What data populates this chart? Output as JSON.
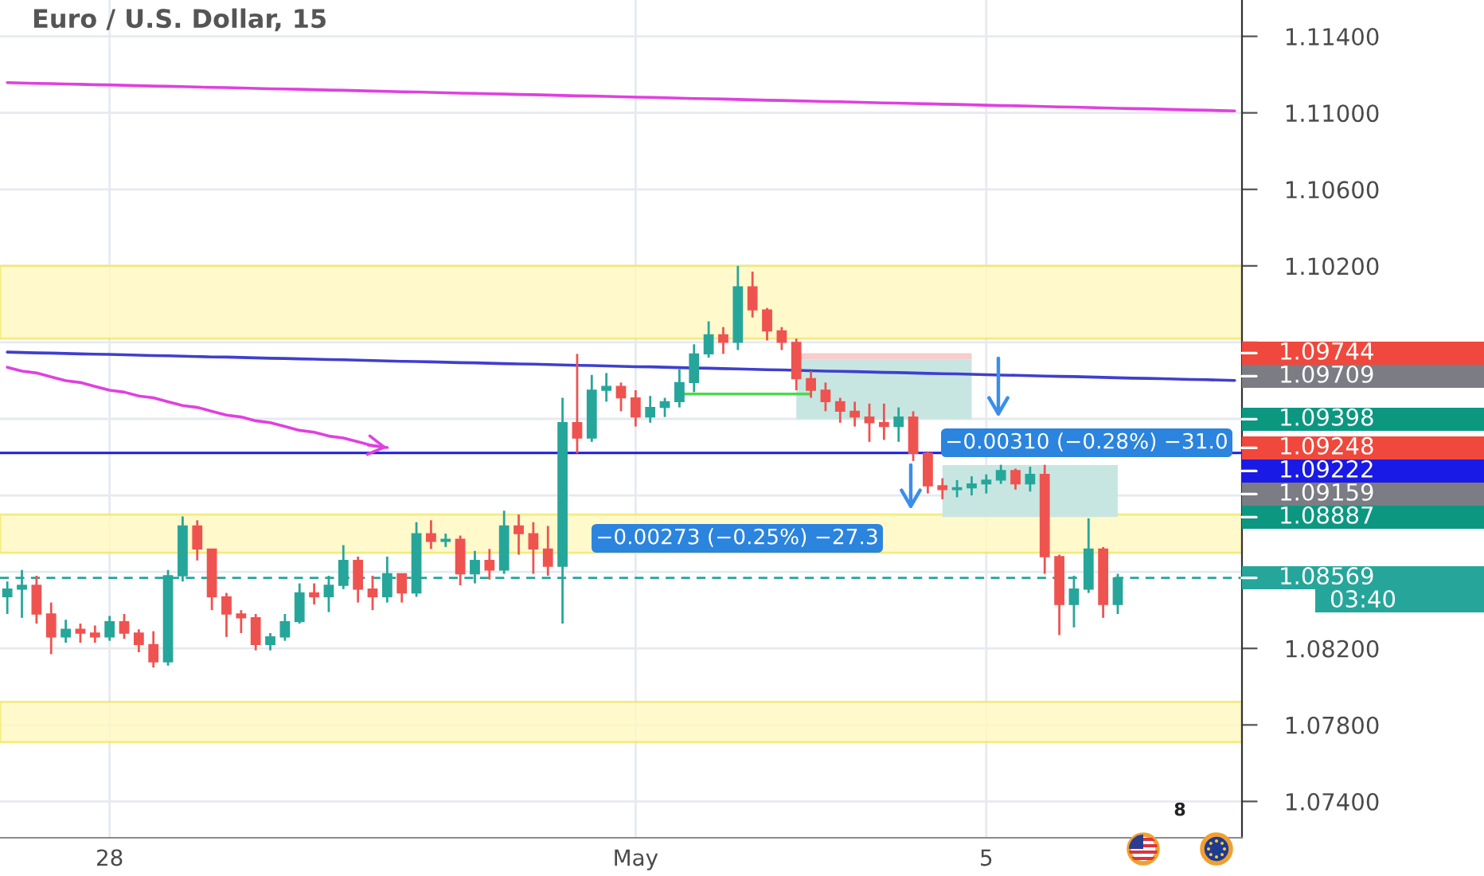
{
  "chart_data": {
    "type": "candlestick",
    "title": "Euro / U.S. Dollar, 15",
    "categories": [
      null,
      null,
      null,
      null,
      null,
      null,
      null,
      "28",
      null,
      null,
      null,
      null,
      null,
      null,
      null,
      null,
      null,
      null,
      null,
      null,
      null,
      null,
      null,
      null,
      null,
      null,
      null,
      null,
      null,
      null,
      null,
      null,
      null,
      null,
      null,
      null,
      null,
      null,
      null,
      null,
      null,
      null,
      null,
      "May",
      null,
      null,
      null,
      null,
      null,
      null,
      null,
      null,
      null,
      null,
      null,
      null,
      null,
      null,
      null,
      null,
      null,
      null,
      null,
      null,
      null,
      null,
      null,
      "5",
      null,
      null,
      null,
      null,
      null,
      null,
      null,
      null,
      null,
      null,
      null,
      null,
      null,
      null,
      null,
      null,
      null
    ],
    "ohlc": [
      [
        1.0847,
        1.0855,
        1.0838,
        1.0851
      ],
      [
        1.0851,
        1.0861,
        1.0836,
        1.0853
      ],
      [
        1.0853,
        1.0858,
        1.0833,
        1.0838
      ],
      [
        1.0838,
        1.0844,
        1.0817,
        1.0826
      ],
      [
        1.0826,
        1.0835,
        1.0823,
        1.083
      ],
      [
        1.083,
        1.0833,
        1.0823,
        1.0828
      ],
      [
        1.0828,
        1.0832,
        1.0823,
        1.0826
      ],
      [
        1.0826,
        1.0837,
        1.0824,
        1.0834
      ],
      [
        1.0834,
        1.0838,
        1.0825,
        1.0828
      ],
      [
        1.0828,
        1.083,
        1.0818,
        1.0822
      ],
      [
        1.0822,
        1.0829,
        1.081,
        1.0813
      ],
      [
        1.0813,
        1.0861,
        1.0811,
        1.0858
      ],
      [
        1.0858,
        1.0889,
        1.0855,
        1.0884
      ],
      [
        1.0884,
        1.0887,
        1.0866,
        1.0872
      ],
      [
        1.0872,
        1.0872,
        1.084,
        1.0847
      ],
      [
        1.0847,
        1.0849,
        1.0826,
        1.0838
      ],
      [
        1.0838,
        1.084,
        1.0828,
        1.0836
      ],
      [
        1.0836,
        1.0838,
        1.0819,
        1.0822
      ],
      [
        1.0822,
        1.0828,
        1.0819,
        1.0826
      ],
      [
        1.0826,
        1.0838,
        1.0824,
        1.0834
      ],
      [
        1.0834,
        1.0854,
        1.0833,
        1.0849
      ],
      [
        1.0849,
        1.0854,
        1.0843,
        1.0847
      ],
      [
        1.0847,
        1.0858,
        1.0839,
        1.0853
      ],
      [
        1.0853,
        1.0874,
        1.0851,
        1.0866
      ],
      [
        1.0866,
        1.0868,
        1.0844,
        1.0851
      ],
      [
        1.0851,
        1.0858,
        1.084,
        1.0847
      ],
      [
        1.0847,
        1.0868,
        1.0844,
        1.0859
      ],
      [
        1.0859,
        1.0859,
        1.0844,
        1.0849
      ],
      [
        1.0849,
        1.0886,
        1.0847,
        1.088
      ],
      [
        1.088,
        1.0887,
        1.0872,
        1.0876
      ],
      [
        1.0876,
        1.088,
        1.0873,
        1.0877
      ],
      [
        1.0877,
        1.0879,
        1.0853,
        1.0859
      ],
      [
        1.0859,
        1.0871,
        1.0854,
        1.0866
      ],
      [
        1.0866,
        1.0872,
        1.0856,
        1.0861
      ],
      [
        1.0861,
        1.0892,
        1.0859,
        1.0884
      ],
      [
        1.0884,
        1.089,
        1.0869,
        1.088
      ],
      [
        1.088,
        1.0886,
        1.0859,
        1.0872
      ],
      [
        1.0872,
        1.0884,
        1.0858,
        1.0863
      ],
      [
        1.0863,
        1.0951,
        1.0833,
        1.0938
      ],
      [
        1.0938,
        1.0974,
        1.0922,
        1.093
      ],
      [
        1.093,
        1.0963,
        1.0928,
        1.0955
      ],
      [
        1.0955,
        1.0964,
        1.0949,
        1.0957
      ],
      [
        1.0957,
        1.0959,
        1.0944,
        1.0951
      ],
      [
        1.0951,
        1.0955,
        1.0936,
        1.0941
      ],
      [
        1.0941,
        1.0952,
        1.0938,
        1.0946
      ],
      [
        1.0946,
        1.0951,
        1.0941,
        1.0949
      ],
      [
        1.0949,
        1.0966,
        1.0946,
        1.0959
      ],
      [
        1.0959,
        1.0979,
        1.0954,
        1.0974
      ],
      [
        1.0974,
        1.0991,
        1.0972,
        1.0984
      ],
      [
        1.0984,
        1.0988,
        1.0974,
        1.098
      ],
      [
        1.098,
        1.102,
        1.0976,
        1.1009
      ],
      [
        1.1009,
        1.1017,
        1.0993,
        1.0997
      ],
      [
        1.0997,
        1.0998,
        1.0981,
        1.0986
      ],
      [
        1.0986,
        1.0988,
        1.0976,
        1.098
      ],
      [
        1.098,
        1.0982,
        1.0955,
        1.0961
      ],
      [
        1.0961,
        1.0965,
        1.0951,
        1.0955
      ],
      [
        1.0955,
        1.0959,
        1.0944,
        1.0949
      ],
      [
        1.0949,
        1.0951,
        1.0938,
        1.0944
      ],
      [
        1.0944,
        1.0949,
        1.0936,
        1.0941
      ],
      [
        1.0941,
        1.0948,
        1.0928,
        1.0938
      ],
      [
        1.0938,
        1.0948,
        1.0929,
        1.0936
      ],
      [
        1.0936,
        1.0946,
        1.0928,
        1.0941
      ],
      [
        1.0941,
        1.0944,
        1.0918,
        1.0922
      ],
      [
        1.0922,
        1.0923,
        1.0901,
        1.0905
      ],
      [
        1.0905,
        1.0909,
        1.0898,
        1.0903
      ],
      [
        1.0903,
        1.0908,
        1.0899,
        1.0904
      ],
      [
        1.0904,
        1.091,
        1.09,
        1.0906
      ],
      [
        1.0906,
        1.0911,
        1.0901,
        1.0908
      ],
      [
        1.0908,
        1.0916,
        1.0906,
        1.0913
      ],
      [
        1.0913,
        1.0914,
        1.0903,
        1.0906
      ],
      [
        1.0906,
        1.0915,
        1.0902,
        1.0911
      ],
      [
        1.0911,
        1.0916,
        1.0859,
        1.0868
      ],
      [
        1.0868,
        1.0869,
        1.0827,
        1.0843
      ],
      [
        1.0843,
        1.0858,
        1.0831,
        1.0851
      ],
      [
        1.0851,
        1.0888,
        1.0849,
        1.0872
      ],
      [
        1.0872,
        1.0873,
        1.0836,
        1.0843
      ],
      [
        1.0843,
        1.0859,
        1.0838,
        1.08569
      ],
      null,
      null,
      null,
      null,
      null,
      null,
      null,
      null
    ],
    "colors": [
      "#26a69a",
      "#26a69a",
      "#ef5350",
      "#ef5350",
      "#26a69a",
      "#ef5350",
      "#ef5350",
      "#26a69a",
      "#ef5350",
      "#ef5350",
      "#ef5350",
      "#26a69a",
      "#26a69a",
      "#ef5350",
      "#ef5350",
      "#ef5350",
      "#ef5350",
      "#ef5350",
      "#26a69a",
      "#26a69a",
      "#26a69a",
      "#ef5350",
      "#26a69a",
      "#26a69a",
      "#ef5350",
      "#ef5350",
      "#26a69a",
      "#ef5350",
      "#26a69a",
      "#ef5350",
      "#26a69a",
      "#ef5350",
      "#26a69a",
      "#ef5350",
      "#26a69a",
      "#ef5350",
      "#ef5350",
      "#ef5350",
      "#26a69a",
      "#ef5350",
      "#26a69a",
      "#26a69a",
      "#ef5350",
      "#ef5350",
      "#26a69a",
      "#26a69a",
      "#26a69a",
      "#26a69a",
      "#26a69a",
      "#ef5350",
      "#26a69a",
      "#ef5350",
      "#ef5350",
      "#ef5350",
      "#ef5350",
      "#ef5350",
      "#ef5350",
      "#ef5350",
      "#ef5350",
      "#ef5350",
      "#ef5350",
      "#26a69a",
      "#ef5350",
      "#ef5350",
      "#ef5350",
      "#26a69a",
      "#26a69a",
      "#26a69a",
      "#26a69a",
      "#ef5350",
      "#26a69a",
      "#ef5350",
      "#ef5350",
      "#26a69a",
      "#26a69a",
      "#ef5350",
      "#26a69a",
      null,
      null,
      null,
      null,
      null,
      null,
      null,
      null
    ],
    "series": [
      {
        "type": "line",
        "color": "#e040e0",
        "values": [
          1.11158,
          1.11156,
          1.11154,
          1.11153,
          1.11151,
          1.11149,
          1.11147,
          1.11146,
          1.11144,
          1.11142,
          1.1114,
          1.11139,
          1.11137,
          1.11135,
          1.11133,
          1.11132,
          1.1113,
          1.11128,
          1.11126,
          1.11125,
          1.11123,
          1.11121,
          1.11119,
          1.11118,
          1.11116,
          1.11114,
          1.11112,
          1.1111,
          1.11109,
          1.11107,
          1.11105,
          1.11103,
          1.11102,
          1.111,
          1.11098,
          1.11096,
          1.11095,
          1.11093,
          1.11091,
          1.11089,
          1.11088,
          1.11086,
          1.11084,
          1.11082,
          1.11081,
          1.11079,
          1.11077,
          1.11075,
          1.11074,
          1.11072,
          1.1107,
          1.11068,
          1.11066,
          1.11065,
          1.11063,
          1.11061,
          1.11059,
          1.11058,
          1.11056,
          1.11054,
          1.11052,
          1.11051,
          1.11049,
          1.11047,
          1.11045,
          1.11044,
          1.11042,
          1.1104,
          1.11038,
          1.11037,
          1.11035,
          1.11033,
          1.11031,
          1.1103,
          1.11028,
          1.11026,
          1.11024,
          1.11022,
          1.11021,
          1.11019,
          1.11017,
          1.11015,
          1.11014,
          1.11012,
          1.1101
        ]
      },
      {
        "type": "line",
        "color": "#3f3fcf",
        "values": [
          1.09749,
          1.09747,
          1.09745,
          1.09744,
          1.09742,
          1.0974,
          1.09738,
          1.09737,
          1.09735,
          1.09733,
          1.09731,
          1.0973,
          1.09728,
          1.09726,
          1.09724,
          1.09723,
          1.09721,
          1.09719,
          1.09717,
          1.09716,
          1.09714,
          1.09712,
          1.0971,
          1.09709,
          1.09707,
          1.09705,
          1.09703,
          1.09701,
          1.097,
          1.09698,
          1.09696,
          1.09694,
          1.09693,
          1.09691,
          1.09689,
          1.09687,
          1.09686,
          1.09684,
          1.09682,
          1.0968,
          1.09679,
          1.09677,
          1.09675,
          1.09673,
          1.09672,
          1.0967,
          1.09668,
          1.09666,
          1.09665,
          1.09663,
          1.09661,
          1.09659,
          1.09657,
          1.09656,
          1.09654,
          1.09652,
          1.0965,
          1.09649,
          1.09647,
          1.09645,
          1.09643,
          1.09642,
          1.0964,
          1.09638,
          1.09636,
          1.09635,
          1.09633,
          1.09631,
          1.09629,
          1.09628,
          1.09626,
          1.09624,
          1.09622,
          1.09621,
          1.09619,
          1.09617,
          1.09615,
          1.09613,
          1.09612,
          1.0961,
          1.09608,
          1.09606,
          1.09605,
          1.09603,
          1.09601
        ]
      },
      {
        "type": "line",
        "color": "#4cd94c",
        "values": [
          null,
          null,
          null,
          null,
          null,
          null,
          null,
          null,
          null,
          null,
          null,
          null,
          null,
          null,
          null,
          null,
          null,
          null,
          null,
          null,
          null,
          null,
          null,
          null,
          null,
          null,
          null,
          null,
          null,
          null,
          null,
          null,
          null,
          null,
          null,
          null,
          null,
          null,
          null,
          null,
          null,
          null,
          null,
          null,
          null,
          null,
          1.0953,
          1.0953,
          1.0953,
          1.0953,
          1.0953,
          1.0953,
          1.0953,
          1.0953,
          1.0953,
          1.0953,
          null,
          null,
          null,
          null,
          null,
          null,
          null,
          null,
          null,
          null,
          null,
          null,
          null,
          null,
          null,
          null,
          null,
          null,
          null,
          null,
          null,
          null,
          null,
          null,
          null,
          null,
          null,
          null,
          null
        ]
      },
      {
        "type": "line",
        "color": "#e040e0",
        "values": [
          1.0967,
          1.0965,
          1.0964,
          1.0962,
          1.096,
          1.0959,
          1.0957,
          1.0955,
          1.0954,
          1.0952,
          1.0951,
          1.0949,
          1.0947,
          1.0946,
          1.0944,
          1.0942,
          1.0941,
          1.0939,
          1.0938,
          1.0936,
          1.0934,
          1.0933,
          1.0931,
          1.093,
          1.0928,
          1.0926,
          1.0925,
          null,
          null,
          null,
          null,
          null,
          null,
          null,
          null,
          null,
          null,
          null,
          null,
          null,
          null,
          null,
          null,
          null,
          null,
          null,
          null,
          null,
          null,
          null,
          null,
          null,
          null,
          null,
          null,
          null,
          null,
          null,
          null,
          null,
          null,
          null,
          null,
          null,
          null,
          null,
          null,
          null,
          null,
          null,
          null,
          null,
          null,
          null,
          null,
          null,
          null,
          null,
          null,
          null,
          null,
          null,
          null,
          null,
          null
        ]
      },
      {
        "type": "line",
        "color": "#f8cccc",
        "values": [
          null,
          null,
          null,
          null,
          null,
          null,
          null,
          null,
          null,
          null,
          null,
          null,
          null,
          null,
          null,
          null,
          null,
          null,
          null,
          null,
          null,
          null,
          null,
          null,
          null,
          null,
          null,
          null,
          null,
          null,
          null,
          null,
          null,
          null,
          null,
          null,
          null,
          null,
          null,
          null,
          null,
          null,
          null,
          null,
          null,
          null,
          null,
          null,
          null,
          null,
          null,
          null,
          null,
          null,
          null,
          null,
          null,
          null,
          null,
          null,
          null,
          null,
          null,
          null,
          null,
          null,
          null,
          null,
          null,
          null,
          null,
          null,
          null,
          null,
          null,
          null,
          null,
          null,
          null,
          null,
          null,
          null,
          null,
          null,
          null
        ],
        "lower": [
          null,
          null,
          null,
          null,
          null,
          null,
          null,
          null,
          null,
          null,
          null,
          null,
          null,
          null,
          null,
          null,
          null,
          null,
          null,
          null,
          null,
          null,
          null,
          null,
          null,
          null,
          null,
          null,
          null,
          null,
          null,
          null,
          null,
          null,
          null,
          null,
          null,
          null,
          null,
          null,
          null,
          null,
          null,
          null,
          null,
          null,
          null,
          null,
          null,
          null,
          null,
          null,
          null,
          null,
          1.09709,
          1.09709,
          1.09709,
          1.09709,
          1.09709,
          1.09709,
          1.09709,
          1.09709,
          1.09709,
          1.09709,
          1.09709,
          1.09709,
          1.09709,
          null,
          null,
          null,
          null,
          null,
          null,
          null,
          null,
          null,
          null,
          null,
          null,
          null,
          null,
          null,
          null,
          null,
          null
        ],
        "upper": [
          null,
          null,
          null,
          null,
          null,
          null,
          null,
          null,
          null,
          null,
          null,
          null,
          null,
          null,
          null,
          null,
          null,
          null,
          null,
          null,
          null,
          null,
          null,
          null,
          null,
          null,
          null,
          null,
          null,
          null,
          null,
          null,
          null,
          null,
          null,
          null,
          null,
          null,
          null,
          null,
          null,
          null,
          null,
          null,
          null,
          null,
          null,
          null,
          null,
          null,
          null,
          null,
          null,
          null,
          1.09744,
          1.09744,
          1.09744,
          1.09744,
          1.09744,
          1.09744,
          1.09744,
          1.09744,
          1.09744,
          1.09744,
          1.09744,
          1.09744,
          1.09744,
          null,
          null,
          null,
          null,
          null,
          null,
          null,
          null,
          null,
          null,
          null,
          null,
          null,
          null,
          null,
          null,
          null,
          null
        ]
      },
      {
        "type": "line",
        "color": "#c8e6e1",
        "values": [
          null,
          null,
          null,
          null,
          null,
          null,
          null,
          null,
          null,
          null,
          null,
          null,
          null,
          null,
          null,
          null,
          null,
          null,
          null,
          null,
          null,
          null,
          null,
          null,
          null,
          null,
          null,
          null,
          null,
          null,
          null,
          null,
          null,
          null,
          null,
          null,
          null,
          null,
          null,
          null,
          null,
          null,
          null,
          null,
          null,
          null,
          null,
          null,
          null,
          null,
          null,
          null,
          null,
          null,
          null,
          null,
          null,
          null,
          null,
          null,
          null,
          null,
          null,
          null,
          null,
          null,
          null,
          null,
          null,
          null,
          null,
          null,
          null,
          null,
          null,
          null,
          null,
          null,
          null,
          null,
          null,
          null,
          null,
          null,
          null
        ],
        "lower": [
          null,
          null,
          null,
          null,
          null,
          null,
          null,
          null,
          null,
          null,
          null,
          null,
          null,
          null,
          null,
          null,
          null,
          null,
          null,
          null,
          null,
          null,
          null,
          null,
          null,
          null,
          null,
          null,
          null,
          null,
          null,
          null,
          null,
          null,
          null,
          null,
          null,
          null,
          null,
          null,
          null,
          null,
          null,
          null,
          null,
          null,
          null,
          null,
          null,
          null,
          null,
          null,
          null,
          null,
          1.09398,
          1.09398,
          1.09398,
          1.09398,
          1.09398,
          1.09398,
          1.09398,
          1.09398,
          1.09398,
          1.09398,
          1.09398,
          1.09398,
          1.09398,
          null,
          null,
          null,
          null,
          null,
          null,
          null,
          null,
          null,
          null,
          null,
          null,
          null,
          null,
          null,
          null,
          null,
          null
        ],
        "upper": [
          null,
          null,
          null,
          null,
          null,
          null,
          null,
          null,
          null,
          null,
          null,
          null,
          null,
          null,
          null,
          null,
          null,
          null,
          null,
          null,
          null,
          null,
          null,
          null,
          null,
          null,
          null,
          null,
          null,
          null,
          null,
          null,
          null,
          null,
          null,
          null,
          null,
          null,
          null,
          null,
          null,
          null,
          null,
          null,
          null,
          null,
          null,
          null,
          null,
          null,
          null,
          null,
          null,
          null,
          1.09709,
          1.09709,
          1.09709,
          1.09709,
          1.09709,
          1.09709,
          1.09709,
          1.09709,
          1.09709,
          1.09709,
          1.09709,
          1.09709,
          1.09709,
          null,
          null,
          null,
          null,
          null,
          null,
          null,
          null,
          null,
          null,
          null,
          null,
          null,
          null,
          null,
          null,
          null,
          null
        ]
      },
      {
        "type": "line",
        "color": "#c8e6e1",
        "values": [
          null,
          null,
          null,
          null,
          null,
          null,
          null,
          null,
          null,
          null,
          null,
          null,
          null,
          null,
          null,
          null,
          null,
          null,
          null,
          null,
          null,
          null,
          null,
          null,
          null,
          null,
          null,
          null,
          null,
          null,
          null,
          null,
          null,
          null,
          null,
          null,
          null,
          null,
          null,
          null,
          null,
          null,
          null,
          null,
          null,
          null,
          null,
          null,
          null,
          null,
          null,
          null,
          null,
          null,
          null,
          null,
          null,
          null,
          null,
          null,
          null,
          null,
          null,
          null,
          null,
          null,
          null,
          null,
          null,
          null,
          null,
          null,
          null,
          null,
          null,
          null,
          null,
          null,
          null,
          null,
          null,
          null,
          null,
          null,
          null
        ],
        "lower": [
          null,
          null,
          null,
          null,
          null,
          null,
          null,
          null,
          null,
          null,
          null,
          null,
          null,
          null,
          null,
          null,
          null,
          null,
          null,
          null,
          null,
          null,
          null,
          null,
          null,
          null,
          null,
          null,
          null,
          null,
          null,
          null,
          null,
          null,
          null,
          null,
          null,
          null,
          null,
          null,
          null,
          null,
          null,
          null,
          null,
          null,
          null,
          null,
          null,
          null,
          null,
          null,
          null,
          null,
          null,
          null,
          null,
          null,
          null,
          null,
          null,
          null,
          null,
          null,
          1.08887,
          1.08887,
          1.08887,
          1.08887,
          1.08887,
          1.08887,
          1.08887,
          1.08887,
          1.08887,
          1.08887,
          1.08887,
          1.08887,
          1.08887,
          null,
          null,
          null,
          null,
          null,
          null,
          null,
          null
        ],
        "upper": [
          null,
          null,
          null,
          null,
          null,
          null,
          null,
          null,
          null,
          null,
          null,
          null,
          null,
          null,
          null,
          null,
          null,
          null,
          null,
          null,
          null,
          null,
          null,
          null,
          null,
          null,
          null,
          null,
          null,
          null,
          null,
          null,
          null,
          null,
          null,
          null,
          null,
          null,
          null,
          null,
          null,
          null,
          null,
          null,
          null,
          null,
          null,
          null,
          null,
          null,
          null,
          null,
          null,
          null,
          null,
          null,
          null,
          null,
          null,
          null,
          null,
          null,
          null,
          null,
          1.09159,
          1.09159,
          1.09159,
          1.09159,
          1.09159,
          1.09159,
          1.09159,
          1.09159,
          1.09159,
          1.09159,
          1.09159,
          1.09159,
          1.09159,
          null,
          null,
          null,
          null,
          null,
          null,
          null,
          null
        ]
      }
    ],
    "ylim": [
      1.0721,
      1.1159
    ],
    "yticks": [
      {
        "value": 1.074,
        "label": "1.07400"
      },
      {
        "value": 1.078,
        "label": "1.07800"
      },
      {
        "value": 1.082,
        "label": "1.08200"
      },
      {
        "value": 1.086,
        "label": null
      },
      {
        "value": 1.09,
        "label": null
      },
      {
        "value": 1.094,
        "label": null
      },
      {
        "value": 1.098,
        "label": null
      },
      {
        "value": 1.102,
        "label": "1.10200"
      },
      {
        "value": 1.106,
        "label": "1.10600"
      },
      {
        "value": 1.11,
        "label": "1.11000"
      },
      {
        "value": 1.114,
        "label": "1.11400"
      }
    ],
    "grid": true,
    "bands": [
      {
        "axis": "y",
        "from": 1.0982,
        "to": 1.102,
        "color": "#fff9c4"
      },
      {
        "axis": "y",
        "from": 1.087,
        "to": 1.089,
        "color": "#fff9c4"
      },
      {
        "axis": "y",
        "from": 1.0771,
        "to": 1.0792,
        "color": "#fff9c4"
      }
    ],
    "ref_lines": [
      {
        "axis": "y",
        "value": 1.09222,
        "label": "1.09222",
        "color": "#1a1ae6",
        "line_style": "solid"
      },
      {
        "axis": "y",
        "value": 1.08569,
        "label": "1.08569\n03:40",
        "color": "#26a69a",
        "line_style": "dashed"
      }
    ],
    "annotations": [
      "−0.00310 (−0.28%) −31.0",
      "−0.00273 (−0.25%) −27.3",
      "8",
      "1.09744",
      "1.09709",
      "1.09398",
      "1.09248",
      "1.09159",
      "1.08887"
    ]
  }
}
